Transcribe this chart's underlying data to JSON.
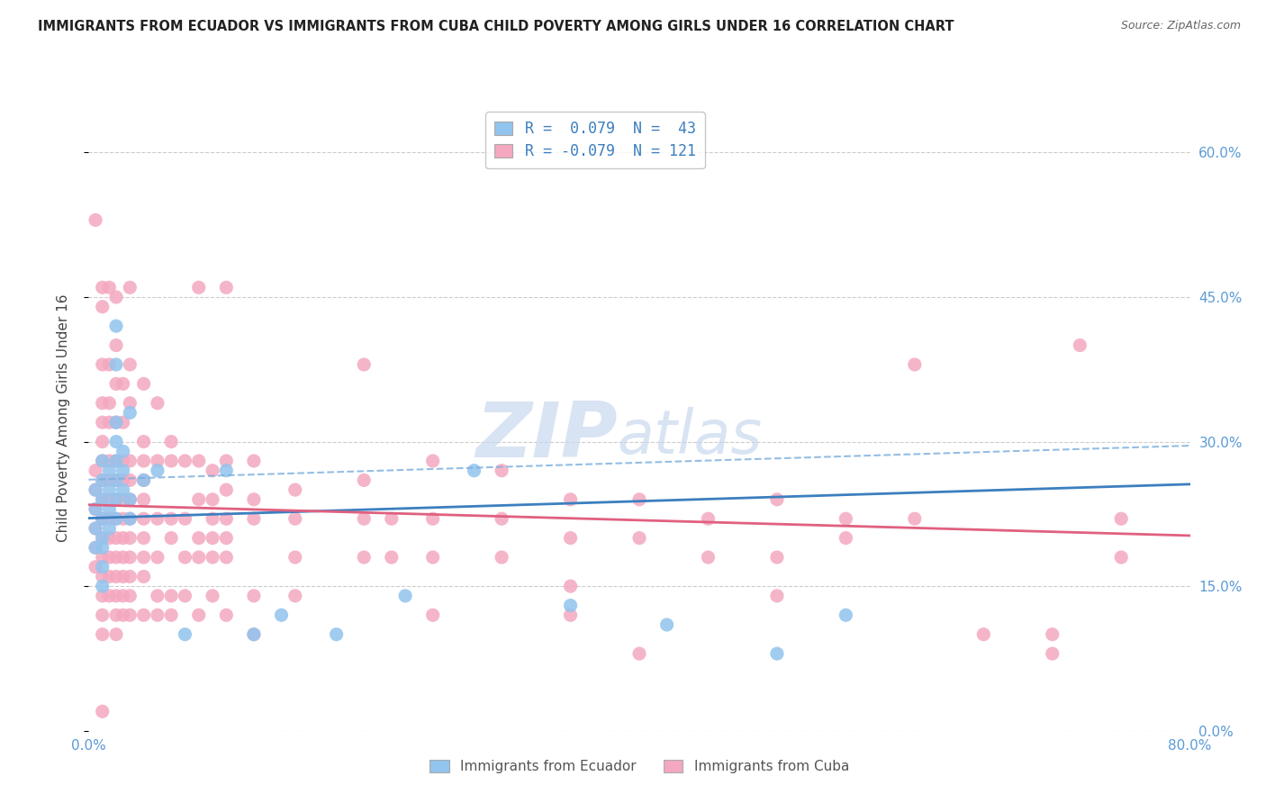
{
  "title": "IMMIGRANTS FROM ECUADOR VS IMMIGRANTS FROM CUBA CHILD POVERTY AMONG GIRLS UNDER 16 CORRELATION CHART",
  "source": "Source: ZipAtlas.com",
  "ylabel": "Child Poverty Among Girls Under 16",
  "xlim": [
    0.0,
    0.8
  ],
  "ylim": [
    0.0,
    0.65
  ],
  "yticks": [
    0.0,
    0.15,
    0.3,
    0.45,
    0.6
  ],
  "right_ytick_labels": [
    "0.0%",
    "15.0%",
    "30.0%",
    "45.0%",
    "60.0%"
  ],
  "watermark_zip": "ZIP",
  "watermark_atlas": "atlas",
  "ecuador_color": "#91C4EE",
  "cuba_color": "#F4A8C0",
  "ecuador_line_color": "#3C7FBF",
  "cuba_line_color": "#E06080",
  "ecuador_R": 0.079,
  "cuba_R": -0.079,
  "ecuador_scatter": [
    [
      0.005,
      0.25
    ],
    [
      0.005,
      0.23
    ],
    [
      0.005,
      0.21
    ],
    [
      0.005,
      0.19
    ],
    [
      0.01,
      0.28
    ],
    [
      0.01,
      0.26
    ],
    [
      0.01,
      0.24
    ],
    [
      0.01,
      0.22
    ],
    [
      0.01,
      0.2
    ],
    [
      0.01,
      0.19
    ],
    [
      0.01,
      0.17
    ],
    [
      0.01,
      0.15
    ],
    [
      0.015,
      0.27
    ],
    [
      0.015,
      0.25
    ],
    [
      0.015,
      0.23
    ],
    [
      0.015,
      0.21
    ],
    [
      0.02,
      0.42
    ],
    [
      0.02,
      0.38
    ],
    [
      0.02,
      0.3
    ],
    [
      0.02,
      0.28
    ],
    [
      0.02,
      0.26
    ],
    [
      0.02,
      0.24
    ],
    [
      0.02,
      0.22
    ],
    [
      0.02,
      0.32
    ],
    [
      0.025,
      0.29
    ],
    [
      0.025,
      0.27
    ],
    [
      0.025,
      0.25
    ],
    [
      0.03,
      0.33
    ],
    [
      0.03,
      0.24
    ],
    [
      0.03,
      0.22
    ],
    [
      0.04,
      0.26
    ],
    [
      0.05,
      0.27
    ],
    [
      0.07,
      0.1
    ],
    [
      0.1,
      0.27
    ],
    [
      0.12,
      0.1
    ],
    [
      0.14,
      0.12
    ],
    [
      0.18,
      0.1
    ],
    [
      0.23,
      0.14
    ],
    [
      0.28,
      0.27
    ],
    [
      0.35,
      0.13
    ],
    [
      0.42,
      0.11
    ],
    [
      0.5,
      0.08
    ],
    [
      0.55,
      0.12
    ]
  ],
  "cuba_scatter": [
    [
      0.005,
      0.53
    ],
    [
      0.005,
      0.27
    ],
    [
      0.005,
      0.25
    ],
    [
      0.005,
      0.23
    ],
    [
      0.005,
      0.21
    ],
    [
      0.005,
      0.19
    ],
    [
      0.005,
      0.17
    ],
    [
      0.01,
      0.46
    ],
    [
      0.01,
      0.44
    ],
    [
      0.01,
      0.38
    ],
    [
      0.01,
      0.34
    ],
    [
      0.01,
      0.32
    ],
    [
      0.01,
      0.3
    ],
    [
      0.01,
      0.28
    ],
    [
      0.01,
      0.26
    ],
    [
      0.01,
      0.24
    ],
    [
      0.01,
      0.22
    ],
    [
      0.01,
      0.2
    ],
    [
      0.01,
      0.18
    ],
    [
      0.01,
      0.16
    ],
    [
      0.01,
      0.14
    ],
    [
      0.01,
      0.12
    ],
    [
      0.01,
      0.1
    ],
    [
      0.01,
      0.02
    ],
    [
      0.015,
      0.46
    ],
    [
      0.015,
      0.38
    ],
    [
      0.015,
      0.34
    ],
    [
      0.015,
      0.32
    ],
    [
      0.015,
      0.28
    ],
    [
      0.015,
      0.26
    ],
    [
      0.015,
      0.24
    ],
    [
      0.015,
      0.22
    ],
    [
      0.015,
      0.2
    ],
    [
      0.015,
      0.18
    ],
    [
      0.015,
      0.16
    ],
    [
      0.015,
      0.14
    ],
    [
      0.02,
      0.45
    ],
    [
      0.02,
      0.4
    ],
    [
      0.02,
      0.36
    ],
    [
      0.02,
      0.32
    ],
    [
      0.02,
      0.28
    ],
    [
      0.02,
      0.26
    ],
    [
      0.02,
      0.24
    ],
    [
      0.02,
      0.22
    ],
    [
      0.02,
      0.2
    ],
    [
      0.02,
      0.18
    ],
    [
      0.02,
      0.16
    ],
    [
      0.02,
      0.14
    ],
    [
      0.02,
      0.12
    ],
    [
      0.02,
      0.1
    ],
    [
      0.025,
      0.36
    ],
    [
      0.025,
      0.32
    ],
    [
      0.025,
      0.28
    ],
    [
      0.025,
      0.26
    ],
    [
      0.025,
      0.24
    ],
    [
      0.025,
      0.22
    ],
    [
      0.025,
      0.2
    ],
    [
      0.025,
      0.18
    ],
    [
      0.025,
      0.16
    ],
    [
      0.025,
      0.14
    ],
    [
      0.025,
      0.12
    ],
    [
      0.03,
      0.46
    ],
    [
      0.03,
      0.38
    ],
    [
      0.03,
      0.34
    ],
    [
      0.03,
      0.28
    ],
    [
      0.03,
      0.26
    ],
    [
      0.03,
      0.24
    ],
    [
      0.03,
      0.22
    ],
    [
      0.03,
      0.2
    ],
    [
      0.03,
      0.18
    ],
    [
      0.03,
      0.16
    ],
    [
      0.03,
      0.14
    ],
    [
      0.03,
      0.12
    ],
    [
      0.04,
      0.36
    ],
    [
      0.04,
      0.3
    ],
    [
      0.04,
      0.28
    ],
    [
      0.04,
      0.26
    ],
    [
      0.04,
      0.24
    ],
    [
      0.04,
      0.22
    ],
    [
      0.04,
      0.2
    ],
    [
      0.04,
      0.18
    ],
    [
      0.04,
      0.16
    ],
    [
      0.04,
      0.12
    ],
    [
      0.05,
      0.34
    ],
    [
      0.05,
      0.28
    ],
    [
      0.05,
      0.22
    ],
    [
      0.05,
      0.18
    ],
    [
      0.05,
      0.14
    ],
    [
      0.05,
      0.12
    ],
    [
      0.06,
      0.3
    ],
    [
      0.06,
      0.28
    ],
    [
      0.06,
      0.22
    ],
    [
      0.06,
      0.2
    ],
    [
      0.06,
      0.14
    ],
    [
      0.06,
      0.12
    ],
    [
      0.07,
      0.28
    ],
    [
      0.07,
      0.22
    ],
    [
      0.07,
      0.18
    ],
    [
      0.07,
      0.14
    ],
    [
      0.08,
      0.46
    ],
    [
      0.08,
      0.28
    ],
    [
      0.08,
      0.24
    ],
    [
      0.08,
      0.2
    ],
    [
      0.08,
      0.18
    ],
    [
      0.08,
      0.12
    ],
    [
      0.09,
      0.27
    ],
    [
      0.09,
      0.24
    ],
    [
      0.09,
      0.22
    ],
    [
      0.09,
      0.2
    ],
    [
      0.09,
      0.18
    ],
    [
      0.09,
      0.14
    ],
    [
      0.1,
      0.46
    ],
    [
      0.1,
      0.28
    ],
    [
      0.1,
      0.25
    ],
    [
      0.1,
      0.22
    ],
    [
      0.1,
      0.2
    ],
    [
      0.1,
      0.18
    ],
    [
      0.1,
      0.12
    ],
    [
      0.12,
      0.28
    ],
    [
      0.12,
      0.24
    ],
    [
      0.12,
      0.22
    ],
    [
      0.12,
      0.14
    ],
    [
      0.12,
      0.1
    ],
    [
      0.15,
      0.25
    ],
    [
      0.15,
      0.22
    ],
    [
      0.15,
      0.18
    ],
    [
      0.15,
      0.14
    ],
    [
      0.2,
      0.38
    ],
    [
      0.2,
      0.26
    ],
    [
      0.2,
      0.22
    ],
    [
      0.2,
      0.18
    ],
    [
      0.22,
      0.22
    ],
    [
      0.22,
      0.18
    ],
    [
      0.25,
      0.28
    ],
    [
      0.25,
      0.22
    ],
    [
      0.25,
      0.18
    ],
    [
      0.25,
      0.12
    ],
    [
      0.3,
      0.27
    ],
    [
      0.3,
      0.22
    ],
    [
      0.3,
      0.18
    ],
    [
      0.35,
      0.24
    ],
    [
      0.35,
      0.2
    ],
    [
      0.35,
      0.15
    ],
    [
      0.35,
      0.12
    ],
    [
      0.4,
      0.24
    ],
    [
      0.4,
      0.2
    ],
    [
      0.4,
      0.08
    ],
    [
      0.45,
      0.22
    ],
    [
      0.45,
      0.18
    ],
    [
      0.5,
      0.24
    ],
    [
      0.5,
      0.18
    ],
    [
      0.5,
      0.14
    ],
    [
      0.55,
      0.22
    ],
    [
      0.55,
      0.2
    ],
    [
      0.6,
      0.38
    ],
    [
      0.6,
      0.22
    ],
    [
      0.65,
      0.1
    ],
    [
      0.7,
      0.1
    ],
    [
      0.7,
      0.08
    ],
    [
      0.72,
      0.4
    ],
    [
      0.75,
      0.22
    ],
    [
      0.75,
      0.18
    ]
  ]
}
